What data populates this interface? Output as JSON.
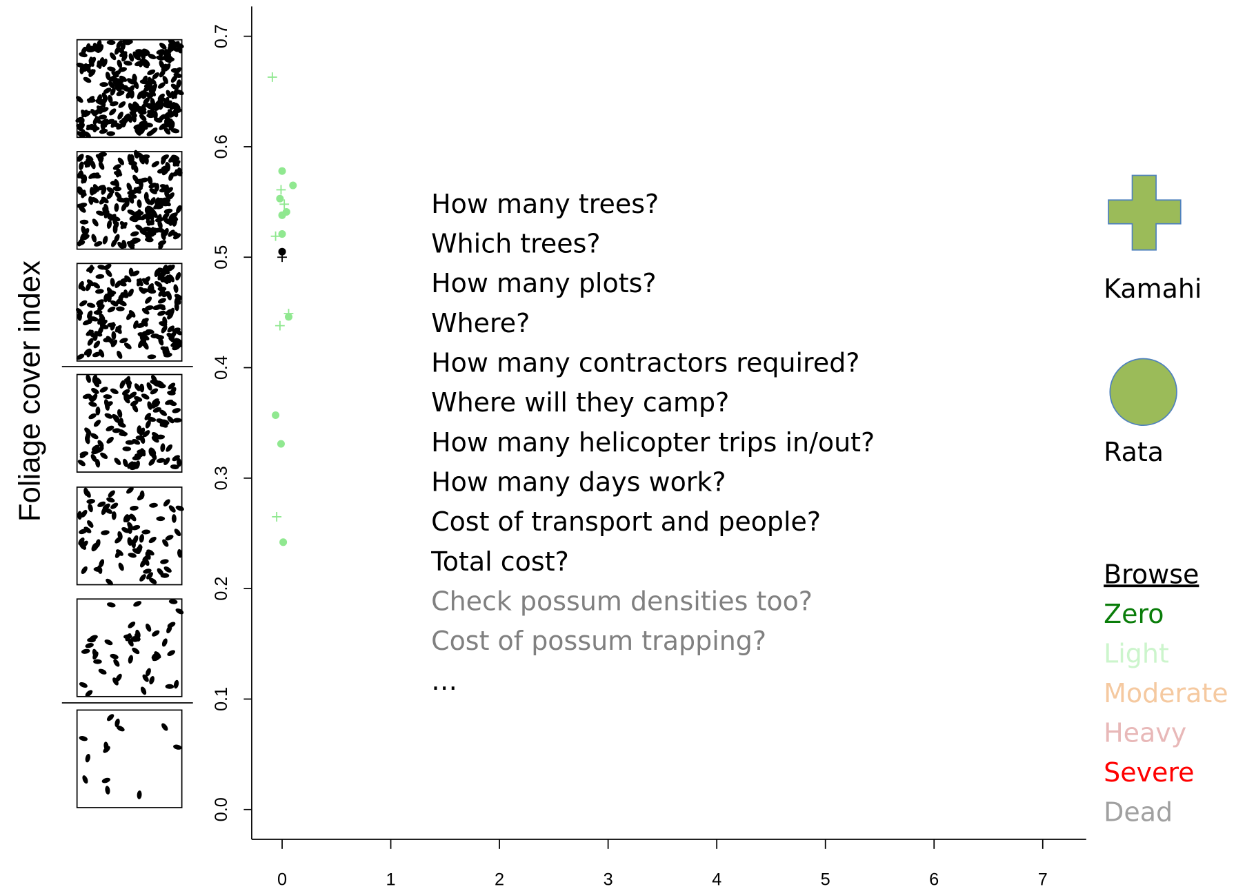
{
  "chart_data": {
    "type": "scatter",
    "y_label": "Foliage cover index",
    "xlim": [
      -0.28,
      7.4
    ],
    "ylim": [
      -0.027,
      0.727
    ],
    "xticks": [
      0,
      1,
      2,
      3,
      4,
      5,
      6,
      7
    ],
    "yticks": [
      {
        "value": 0,
        "label": "0.0"
      },
      0.1,
      0.2,
      0.3,
      0.4,
      0.5,
      0.6,
      0.7
    ],
    "series": [
      {
        "name": "Kamahi",
        "marker": "plus",
        "color": "#90e890",
        "x": [
          -0.09,
          -0.01,
          0.02,
          -0.06,
          0.06,
          -0.02,
          -0.05
        ],
        "values": [
          0.663,
          0.561,
          0.548,
          0.519,
          0.449,
          0.438,
          0.265
        ]
      },
      {
        "name": "Rata",
        "marker": "circle",
        "color": "#90e890",
        "x": [
          0,
          0.1,
          -0.02,
          0,
          0.04,
          0,
          0.06,
          -0.06,
          -0.01,
          0.01
        ],
        "values": [
          0.578,
          0.565,
          0.553,
          0.538,
          0.541,
          0.521,
          0.446,
          0.357,
          0.331,
          0.242
        ]
      },
      {
        "marker": "plus",
        "color": "#000000",
        "x": [
          0
        ],
        "values": [
          0.5
        ]
      },
      {
        "marker": "circle",
        "color": "#000000",
        "x": [
          0
        ],
        "values": [
          0.505
        ]
      }
    ],
    "legend_color": "#9bbb59",
    "legend_edge": "#4f81bd",
    "questions": [
      {
        "text": "How many trees?",
        "color": "#000000"
      },
      {
        "text": "Which trees?",
        "color": "#000000"
      },
      {
        "text": "How many plots?",
        "color": "#000000"
      },
      {
        "text": "Where?",
        "color": "#000000"
      },
      {
        "text": "How many contractors required?",
        "color": "#000000"
      },
      {
        "text": "Where will they camp?",
        "color": "#000000"
      },
      {
        "text": "How many helicopter trips in/out?",
        "color": "#000000"
      },
      {
        "text": "How many days work?",
        "color": "#000000"
      },
      {
        "text": "Cost of transport and people?",
        "color": "#000000"
      },
      {
        "text": "Total cost?",
        "color": "#000000"
      },
      {
        "text": "Check possum densities too?",
        "color": "#808080"
      },
      {
        "text": "Cost of possum trapping?",
        "color": "#808080"
      },
      {
        "text": "…",
        "color": "#000000"
      }
    ],
    "browse": {
      "title": "Browse",
      "levels": [
        {
          "label": "Zero",
          "color": "#0a7d0a"
        },
        {
          "label": "Light",
          "color": "#ccf5cc"
        },
        {
          "label": "Moderate",
          "color": "#f5c9a0"
        },
        {
          "label": "Heavy",
          "color": "#e8b8b8"
        },
        {
          "label": "Severe",
          "color": "#ff0000"
        },
        {
          "label": "Dead",
          "color": "#a0a0a0"
        }
      ]
    }
  }
}
